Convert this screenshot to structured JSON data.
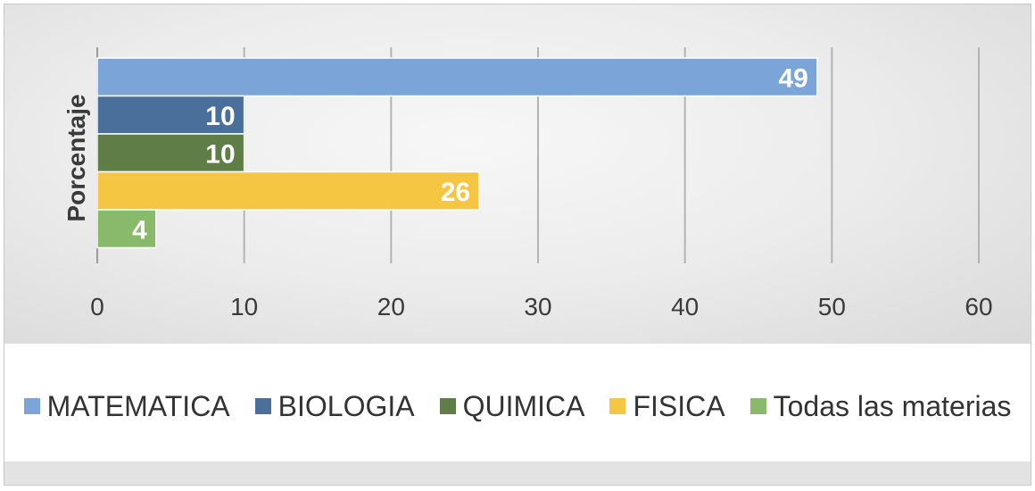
{
  "chart_data": {
    "type": "bar",
    "orientation": "horizontal",
    "title": "",
    "xlabel": "",
    "ylabel": "Porcentaje",
    "xlim": [
      0,
      60
    ],
    "x_ticks": [
      "0",
      "10",
      "20",
      "30",
      "40",
      "50",
      "60"
    ],
    "grid": "vertical",
    "legend_position": "bottom",
    "series": [
      {
        "name": "MATEMATICA",
        "value": 49,
        "label": "49",
        "color": "#7ba4d9"
      },
      {
        "name": "BIOLOGIA",
        "value": 10,
        "label": "10",
        "color": "#4a6f9b"
      },
      {
        "name": "QUIMICA",
        "value": 10,
        "label": "10",
        "color": "#5f7d46"
      },
      {
        "name": "FISICA",
        "value": 26,
        "label": "26",
        "color": "#f4c642"
      },
      {
        "name": "Todas las materias",
        "value": 4,
        "label": "4",
        "color": "#89b96a"
      }
    ]
  }
}
